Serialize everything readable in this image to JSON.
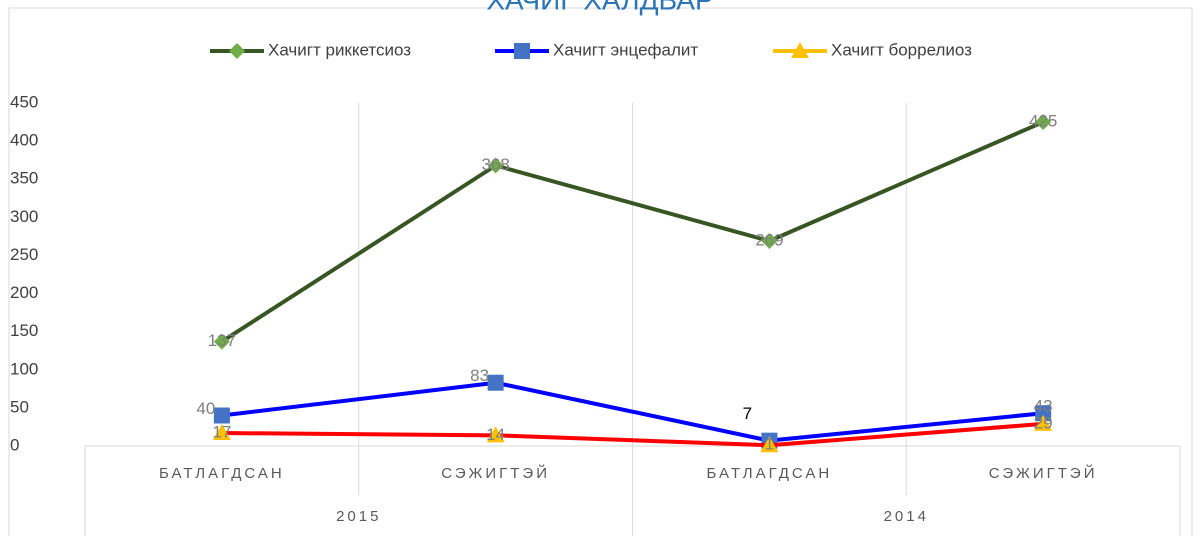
{
  "chart_data": {
    "type": "line",
    "title": "ХАЧИГ ХАЛДВАР",
    "categories": [
      "БАТЛАГДСАН",
      "СЭЖИГТЭЙ",
      "БАТЛАГДСАН",
      "СЭЖИГТЭЙ"
    ],
    "groups": [
      "2015",
      "2014"
    ],
    "series": [
      {
        "name": "Хачигт риккетсиоз",
        "color": "#70ad47",
        "line_color": "#375623",
        "marker": "diamond",
        "values": [
          137,
          368,
          269,
          425
        ]
      },
      {
        "name": "Хачигт энцефалит",
        "color": "#4472c4",
        "line_color": "#0000ff",
        "marker": "square",
        "values": [
          40,
          83,
          7,
          43
        ]
      },
      {
        "name": "Хачигт боррелиоз",
        "color": "#ffc000",
        "line_color": "#ff0000",
        "marker": "triangle",
        "values": [
          17,
          14,
          1,
          29
        ]
      }
    ],
    "ylim": [
      0,
      450
    ],
    "yticks": [
      0,
      50,
      100,
      150,
      200,
      250,
      300,
      350,
      400,
      450
    ],
    "grid": true
  }
}
